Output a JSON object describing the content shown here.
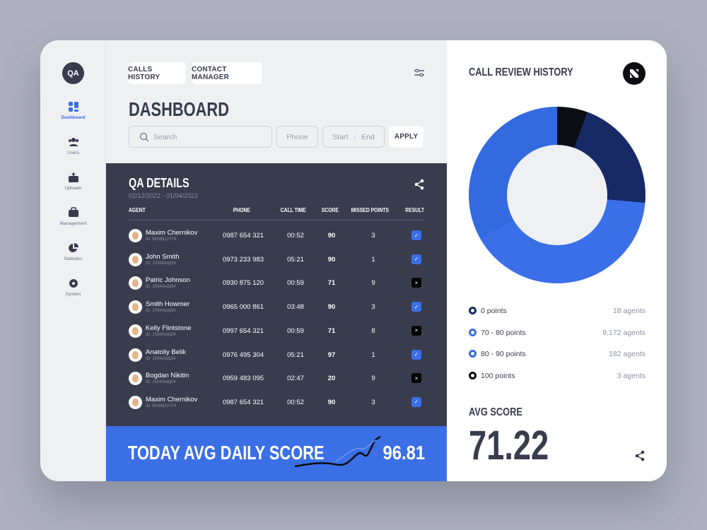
{
  "sidebar": {
    "logo": "QA",
    "items": [
      {
        "label": "Dashboard",
        "icon": "dashboard-icon",
        "active": true
      },
      {
        "label": "Users",
        "icon": "users-icon"
      },
      {
        "label": "Uploads",
        "icon": "upload-icon"
      },
      {
        "label": "Management",
        "icon": "briefcase-icon"
      },
      {
        "label": "Statistics",
        "icon": "pie-chart-icon"
      },
      {
        "label": "System",
        "icon": "gear-icon"
      }
    ]
  },
  "header": {
    "tabs": [
      "CALLS HISTORY",
      "CONTACT MANAGER"
    ],
    "title": "DASHBOARD",
    "filters": {
      "search_placeholder": "Search",
      "phone_placeholder": "Phone",
      "start_placeholder": "Start",
      "end_placeholder": "End",
      "apply": "APPLY"
    }
  },
  "qa": {
    "title": "QA DETAILS",
    "range": "02/12/2022 - 01/04/2022",
    "columns": [
      "AGENT",
      "PHONE",
      "CALL TIME",
      "SCORE",
      "MISSED POINTS",
      "RESULT"
    ],
    "rows": [
      {
        "name": "Maxim Chernikov",
        "id": "ID: MX89j12774",
        "phone": "0987 654 321",
        "time": "00:52",
        "score": "90",
        "missed": "3",
        "pass": true
      },
      {
        "name": "John Smith",
        "id": "ID: JS940kdg54",
        "phone": "0973 233 983",
        "time": "05:21",
        "score": "90",
        "missed": "1",
        "pass": true
      },
      {
        "name": "Patric Johnson",
        "id": "ID: JS940kdg54",
        "phone": "0930 875 120",
        "time": "00:59",
        "score": "71",
        "missed": "9",
        "pass": false
      },
      {
        "name": "Smith Howmer",
        "id": "ID: JS940kdg54",
        "phone": "0965 000 861",
        "time": "03:48",
        "score": "90",
        "missed": "3",
        "pass": true
      },
      {
        "name": "Kelly Flintstone",
        "id": "ID: JS940kdg54",
        "phone": "0997 654 321",
        "time": "00:59",
        "score": "71",
        "missed": "8",
        "pass": false
      },
      {
        "name": "Anatoliy Belik",
        "id": "ID: JS940kdg54",
        "phone": "0976 495 304",
        "time": "05:21",
        "score": "97",
        "missed": "1",
        "pass": true
      },
      {
        "name": "Bogdan Nikitin",
        "id": "ID: JS940kdg54",
        "phone": "0959 483 095",
        "time": "02:47",
        "score": "20",
        "missed": "9",
        "pass": false
      },
      {
        "name": "Maxim Chernikov",
        "id": "ID: MX89j12774",
        "phone": "0987 654 321",
        "time": "00:52",
        "score": "90",
        "missed": "3",
        "pass": true
      }
    ]
  },
  "daily": {
    "label": "TODAY AVG DAILY SCORE",
    "value": "96.81"
  },
  "review": {
    "title": "CALL REVIEW HISTORY",
    "legend": [
      {
        "label": "0 points",
        "count": "18 agents",
        "color": "#172a66"
      },
      {
        "label": "70 - 80 points",
        "count": "9,172 agents",
        "color": "#3a6fe8"
      },
      {
        "label": "80 - 90 points",
        "count": "182 agents",
        "color": "#336ae0"
      },
      {
        "label": "100 points",
        "count": "3 agents",
        "color": "#0b0d12"
      }
    ],
    "avg_label": "AVG SCORE",
    "avg_value": "71.22"
  },
  "colors": {
    "accent": "#3b6fe6",
    "dark": "#383c4d"
  }
}
